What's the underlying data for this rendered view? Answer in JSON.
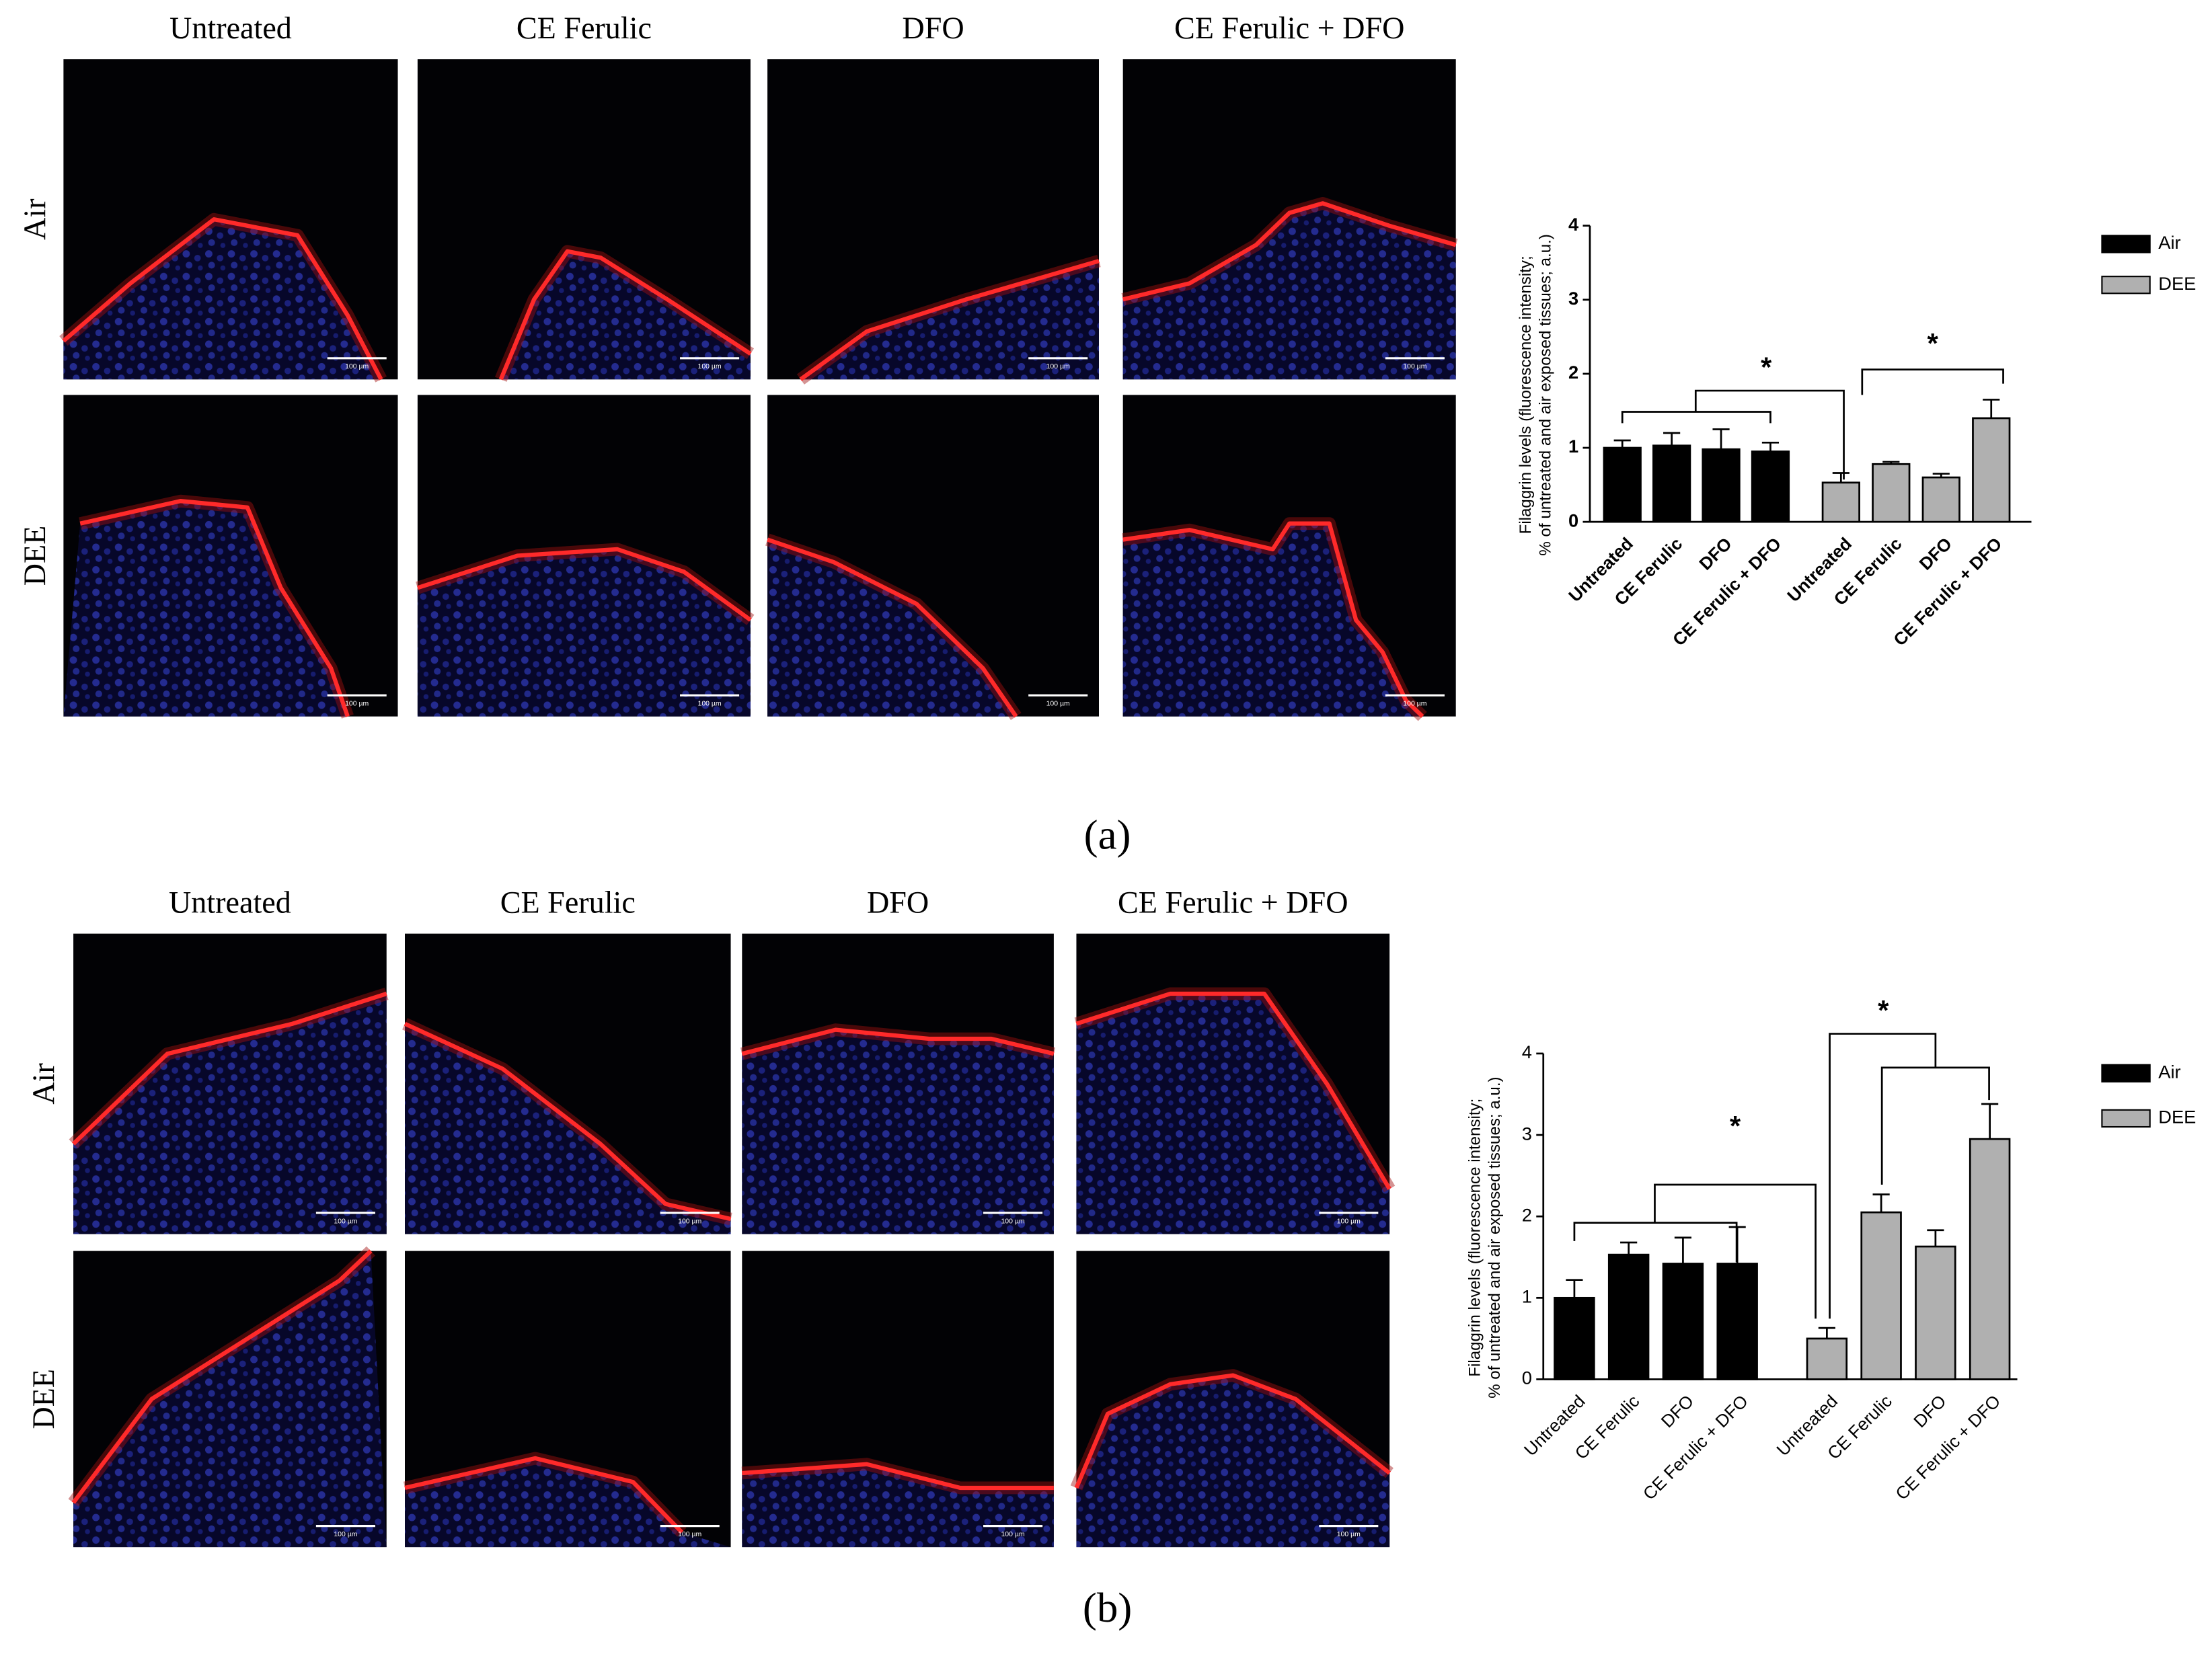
{
  "panels": [
    {
      "label": "(a)",
      "columns": [
        "Untreated",
        "CE Ferulic",
        "DFO",
        "CE Ferulic + DFO"
      ],
      "rows": [
        "Air",
        "DEE"
      ],
      "scale_bar": "100 µm"
    },
    {
      "label": "(b)",
      "columns": [
        "Untreated",
        "CE Ferulic",
        "DFO",
        "CE Ferulic + DFO"
      ],
      "rows": [
        "Air",
        "DEE"
      ],
      "scale_bar": "100 µm"
    }
  ],
  "chart_data": [
    {
      "type": "bar",
      "ylabel": [
        "Filaggrin levels (fluorescence intensity;",
        "% of untreated and air exposed tissues; a.u.)"
      ],
      "categories": [
        "Untreated",
        "CE Ferulic",
        "DFO",
        "CE Ferulic + DFO"
      ],
      "series": [
        {
          "name": "Air",
          "color": "#000000",
          "values": [
            1.0,
            1.03,
            0.98,
            0.95
          ],
          "errors": [
            0.1,
            0.17,
            0.27,
            0.12
          ]
        },
        {
          "name": "DEE",
          "color": "#b0b0b0",
          "values": [
            0.53,
            0.78,
            0.6,
            1.4
          ],
          "errors": [
            0.13,
            0.03,
            0.05,
            0.25
          ]
        }
      ],
      "ylim": [
        0,
        4
      ],
      "yticks": [
        0,
        1,
        2,
        3,
        4
      ],
      "annotations": [
        "*",
        "*"
      ]
    },
    {
      "type": "bar",
      "ylabel": [
        "Filaggrin levels (fluorescence intensity;",
        "% of untreated and air exposed tissues; a.u.)"
      ],
      "categories": [
        "Untreated",
        "CE Ferulic",
        "DFO",
        "CE Ferulic + DFO"
      ],
      "series": [
        {
          "name": "Air",
          "color": "#000000",
          "values": [
            1.0,
            1.53,
            1.42,
            1.42
          ],
          "errors": [
            0.22,
            0.15,
            0.32,
            0.45
          ]
        },
        {
          "name": "DEE",
          "color": "#b0b0b0",
          "values": [
            0.5,
            2.05,
            1.63,
            2.95
          ],
          "errors": [
            0.13,
            0.22,
            0.2,
            0.43
          ]
        }
      ],
      "ylim": [
        0,
        4
      ],
      "yticks": [
        0,
        1,
        2,
        3,
        4
      ],
      "annotations": [
        "*",
        "*"
      ]
    }
  ]
}
